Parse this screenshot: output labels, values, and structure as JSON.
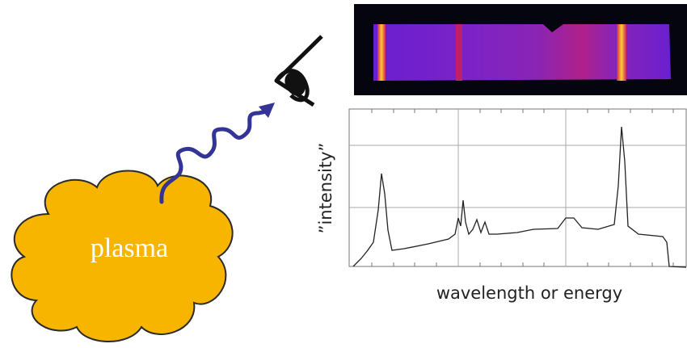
{
  "diagram": {
    "plasma_label": "plasma",
    "y_axis_label": "”intensity”",
    "x_axis_label": "wavelength or energy"
  }
}
